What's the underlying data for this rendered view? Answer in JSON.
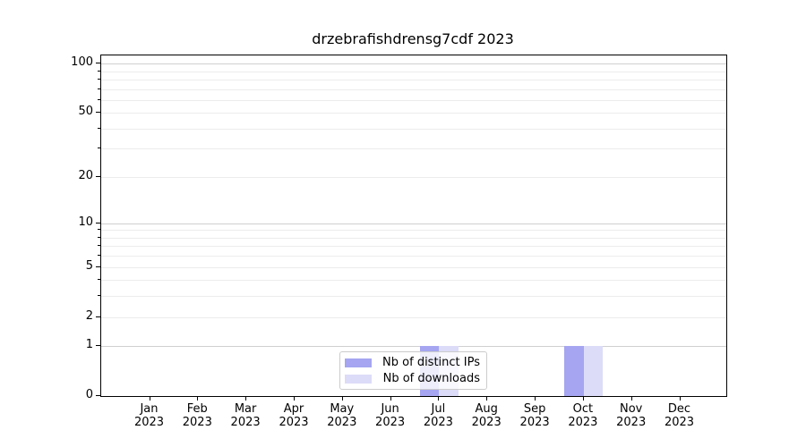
{
  "figure": {
    "background": "#ffffff"
  },
  "chart_data": {
    "type": "bar",
    "title": "drzebrafishdrensg7cdf 2023",
    "x": {
      "months": [
        "Jan",
        "Feb",
        "Mar",
        "Apr",
        "May",
        "Jun",
        "Jul",
        "Aug",
        "Sep",
        "Oct",
        "Nov",
        "Dec"
      ],
      "year": "2023"
    },
    "series": [
      {
        "name": "Nb of distinct IPs",
        "color": "#a5a5f1",
        "values": [
          0,
          0,
          0,
          0,
          0,
          0,
          1,
          0,
          0,
          1,
          0,
          0
        ]
      },
      {
        "name": "Nb of downloads",
        "color": "#dcdcf8",
        "values": [
          0,
          0,
          0,
          0,
          0,
          0,
          1,
          0,
          0,
          1,
          0,
          0
        ]
      }
    ],
    "yscale": "log1p",
    "ylim": [
      0,
      112
    ],
    "yticks": [
      100,
      50,
      20,
      10,
      5,
      2,
      1,
      0
    ],
    "grid": {
      "major": [
        1,
        10,
        100
      ],
      "minor": [
        2,
        3,
        4,
        5,
        6,
        7,
        8,
        9,
        20,
        30,
        40,
        50,
        60,
        70,
        80,
        90
      ],
      "major_color": "#d0d0d0",
      "minor_color": "#ececec"
    },
    "legend": {
      "entries": [
        "Nb of distinct IPs",
        "Nb of downloads"
      ],
      "position": "lower center"
    }
  }
}
